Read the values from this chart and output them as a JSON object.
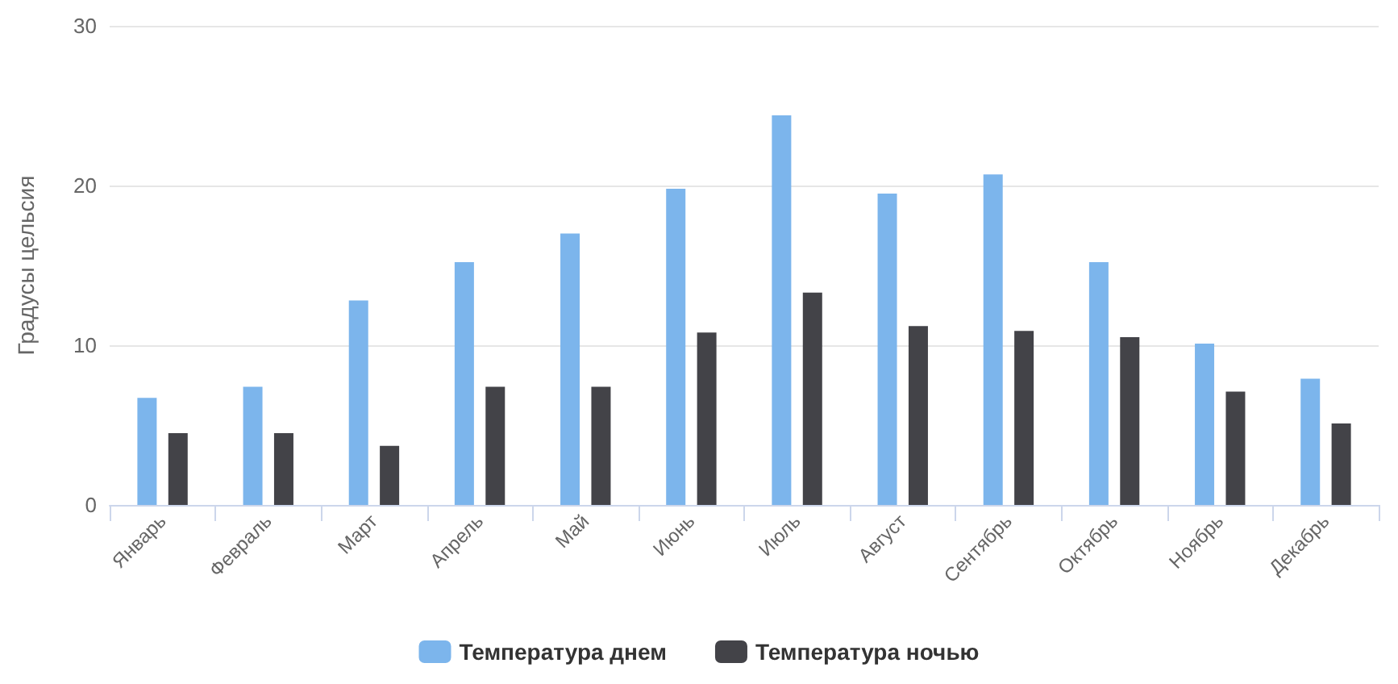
{
  "chart_data": {
    "type": "bar",
    "ylabel": "Градусы цельсия",
    "categories": [
      "Январь",
      "Февраль",
      "Март",
      "Апрель",
      "Май",
      "Июнь",
      "Июль",
      "Август",
      "Сентябрь",
      "Октябрь",
      "Ноябрь",
      "Декабрь"
    ],
    "series": [
      {
        "name": "Температура днем",
        "color": "#7cb5ec",
        "values": [
          6.7,
          7.4,
          12.8,
          15.2,
          17.0,
          19.8,
          24.4,
          19.5,
          20.7,
          15.2,
          10.1,
          7.9
        ]
      },
      {
        "name": "Температура ночью",
        "color": "#434348",
        "values": [
          4.5,
          4.5,
          3.7,
          7.4,
          7.4,
          10.8,
          13.3,
          11.2,
          10.9,
          10.5,
          7.1,
          5.1
        ]
      }
    ],
    "ylim": [
      0,
      30
    ],
    "yticks": [
      0,
      10,
      20,
      30
    ],
    "grid": "y",
    "legend": "bottom"
  }
}
